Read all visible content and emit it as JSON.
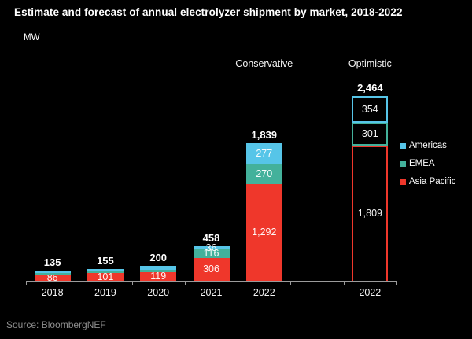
{
  "title": "Estimate and forecast of annual electrolyzer shipment by market, 2018-2022",
  "unit_label": "MW",
  "source": "Source: BloombergNEF",
  "colors": {
    "background": "#000000",
    "title_text": "#ffffff",
    "axis": "#9b9b9b",
    "source_text": "#8f8f8f",
    "americas": "#56C5E8",
    "emea": "#43B19B",
    "asia_pacific": "#EF372B"
  },
  "chart_data": {
    "type": "bar",
    "stacked": true,
    "title": "Estimate and forecast of annual electrolyzer shipment by market, 2018-2022",
    "unit": "MW",
    "xlabel": "",
    "ylabel": "MW",
    "ylim": [
      0,
      2600
    ],
    "grid": false,
    "legend_position": "right",
    "x_slots": 7,
    "stack_order_bottom_to_top": [
      "Asia Pacific",
      "EMEA",
      "Americas"
    ],
    "series": [
      {
        "name": "Americas",
        "color": "#56C5E8"
      },
      {
        "name": "EMEA",
        "color": "#43B19B"
      },
      {
        "name": "Asia Pacific",
        "color": "#EF372B"
      }
    ],
    "scenario_headers": [
      {
        "label": "Conservative",
        "slot": 4
      },
      {
        "label": "Optimistic",
        "slot": 6
      }
    ],
    "groups": [
      {
        "category": "2018",
        "slot": 0,
        "style": "filled",
        "total": 135,
        "total_label": "135",
        "segments": [
          {
            "series": "Asia Pacific",
            "value": 86,
            "label": "86"
          },
          {
            "series": "EMEA",
            "value": 24,
            "label": "",
            "estimated": true
          },
          {
            "series": "Americas",
            "value": 25,
            "label": "",
            "estimated": true
          }
        ]
      },
      {
        "category": "2019",
        "slot": 1,
        "style": "filled",
        "total": 155,
        "total_label": "155",
        "segments": [
          {
            "series": "Asia Pacific",
            "value": 101,
            "label": "101"
          },
          {
            "series": "EMEA",
            "value": 27,
            "label": "",
            "estimated": true
          },
          {
            "series": "Americas",
            "value": 27,
            "label": "",
            "estimated": true
          }
        ]
      },
      {
        "category": "2020",
        "slot": 2,
        "style": "filled",
        "total": 200,
        "total_label": "200",
        "segments": [
          {
            "series": "Asia Pacific",
            "value": 119,
            "label": "119"
          },
          {
            "series": "EMEA",
            "value": 31,
            "label": "",
            "estimated": true
          },
          {
            "series": "Americas",
            "value": 50,
            "label": "",
            "estimated": true
          }
        ]
      },
      {
        "category": "2021",
        "slot": 3,
        "style": "filled",
        "total": 458,
        "total_label": "458",
        "segments": [
          {
            "series": "Asia Pacific",
            "value": 306,
            "label": "306"
          },
          {
            "series": "EMEA",
            "value": 116,
            "label": "116"
          },
          {
            "series": "Americas",
            "value": 36,
            "label": "36"
          }
        ]
      },
      {
        "category": "2022",
        "slot": 4,
        "style": "filled",
        "scenario": "Conservative",
        "total": 1839,
        "total_label": "1,839",
        "segments": [
          {
            "series": "Asia Pacific",
            "value": 1292,
            "label": "1,292"
          },
          {
            "series": "EMEA",
            "value": 270,
            "label": "270"
          },
          {
            "series": "Americas",
            "value": 277,
            "label": "277"
          }
        ]
      },
      {
        "category": "2022",
        "slot": 6,
        "style": "outlined",
        "scenario": "Optimistic",
        "total": 2464,
        "total_label": "2,464",
        "segments": [
          {
            "series": "Asia Pacific",
            "value": 1809,
            "label": "1,809"
          },
          {
            "series": "EMEA",
            "value": 301,
            "label": "301"
          },
          {
            "series": "Americas",
            "value": 354,
            "label": "354"
          }
        ]
      }
    ]
  }
}
